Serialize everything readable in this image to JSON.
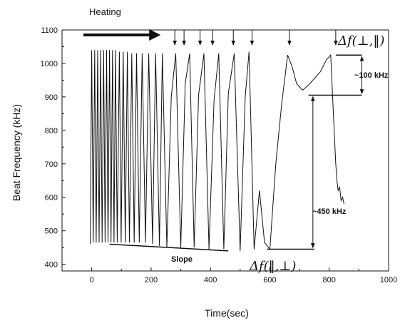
{
  "chart_data": {
    "type": "line",
    "title": "",
    "xlabel": "Time(sec)",
    "ylabel": "Beat Frequency (kHz)",
    "xlim": [
      -100,
      1000
    ],
    "ylim": [
      380,
      1100
    ],
    "xticks": [
      0,
      200,
      400,
      600,
      800,
      1000
    ],
    "yticks": [
      400,
      500,
      600,
      700,
      800,
      900,
      1000,
      1100
    ],
    "grid": false,
    "colors": {
      "line": "#111111",
      "background": "#ffffff"
    },
    "series": [
      {
        "x": [
          -5,
          0,
          5,
          10,
          15,
          20,
          25,
          30,
          35,
          40,
          45,
          50,
          55,
          60,
          65,
          70,
          75,
          80,
          86,
          93,
          99,
          106,
          113,
          120,
          127,
          135,
          143,
          151,
          160,
          170,
          181,
          192,
          205,
          215,
          228,
          238,
          253,
          268,
          283,
          300,
          315,
          330,
          345,
          360,
          378,
          395,
          412,
          428,
          445,
          460,
          480,
          500,
          517,
          530,
          547,
          565,
          582,
          600,
          620,
          640,
          660,
          675,
          690,
          710,
          730,
          750,
          770,
          790,
          805,
          815,
          822,
          826,
          830,
          835,
          840,
          845,
          850
        ],
        "y": [
          460,
          1040,
          465,
          1040,
          465,
          1040,
          465,
          1040,
          465,
          1040,
          465,
          1040,
          465,
          1040,
          465,
          1040,
          465,
          1040,
          465,
          1035,
          465,
          1035,
          465,
          1035,
          465,
          1030,
          465,
          1030,
          465,
          1030,
          465,
          1030,
          460,
          1030,
          455,
          1030,
          450,
          900,
          1030,
          450,
          940,
          1030,
          450,
          905,
          1030,
          445,
          890,
          1030,
          445,
          910,
          1030,
          440,
          900,
          1035,
          445,
          620,
          465,
          445,
          700,
          880,
          1025,
          990,
          940,
          920,
          935,
          955,
          975,
          1010,
          1025,
          830,
          700,
          650,
          620,
          630,
          590,
          600,
          580
        ]
      }
    ],
    "annotations": {
      "heating": "Heating",
      "slope": "Slope",
      "delta_100": "~100 kHz",
      "delta_450": "~450 kHz",
      "delta_f_perp_par": "Δf(⊥,‖)",
      "delta_f_par_perp": "Δf(‖,⊥)"
    },
    "arrow_times": [
      280,
      311,
      365,
      407,
      477,
      540,
      666,
      822
    ],
    "reference_lines": {
      "top": {
        "y": 1025,
        "x_start": 822,
        "x_end": 910
      },
      "mid": {
        "y": 905,
        "x_start": 730,
        "x_end": 910
      },
      "bottom": {
        "y": 445,
        "x_start": 590,
        "x_end": 750
      },
      "slope": {
        "x_start": 60,
        "y_start": 460,
        "x_end": 460,
        "y_end": 440
      },
      "dim_100_x": 910,
      "dim_450_x": 745
    }
  }
}
